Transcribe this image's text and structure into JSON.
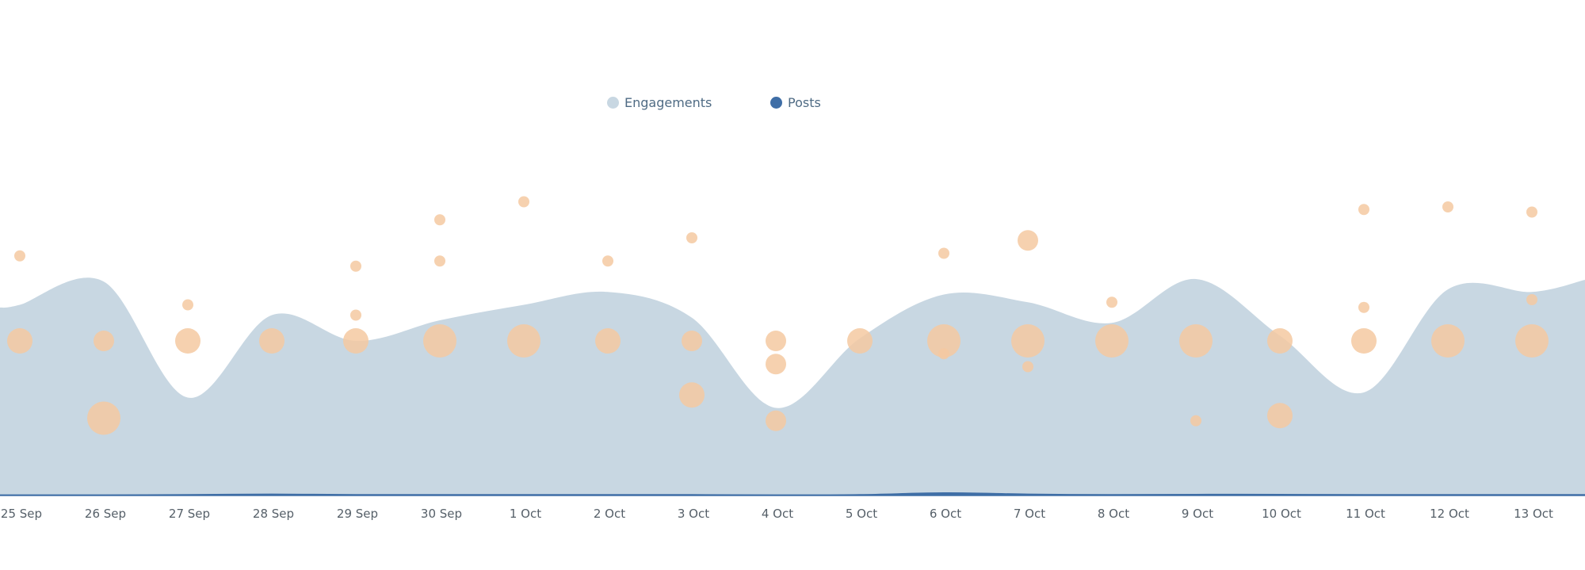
{
  "legend": {
    "engagements_label": "Engagements",
    "posts_label": "Posts"
  },
  "colors": {
    "engagements_fill": "#c8d7e2",
    "posts_line": "#3f6ea6",
    "bubble": "#f4c9a1",
    "axis_text": "#555f68",
    "legend_text": "#4f6b84"
  },
  "chart_data": {
    "type": "area",
    "categories": [
      "25 Sep",
      "26 Sep",
      "27 Sep",
      "28 Sep",
      "29 Sep",
      "30 Sep",
      "1 Oct",
      "2 Oct",
      "3 Oct",
      "4 Oct",
      "5 Oct",
      "6 Oct",
      "7 Oct",
      "8 Oct",
      "9 Oct",
      "10 Oct",
      "11 Oct",
      "12 Oct",
      "13 Oct"
    ],
    "series": [
      {
        "name": "Engagements",
        "values": [
          0.74,
          0.83,
          0.38,
          0.7,
          0.6,
          0.68,
          0.74,
          0.79,
          0.69,
          0.34,
          0.61,
          0.78,
          0.75,
          0.67,
          0.84,
          0.62,
          0.4,
          0.8,
          0.79
        ]
      },
      {
        "name": "Posts",
        "values": [
          0.002,
          0.002,
          0.003,
          0.005,
          0.003,
          0.003,
          0.003,
          0.003,
          0.003,
          0.002,
          0.003,
          0.01,
          0.005,
          0.003,
          0.004,
          0.004,
          0.003,
          0.003,
          0.003
        ]
      }
    ],
    "bubbles": [
      {
        "x": "25 Sep",
        "level": 0.93,
        "size": 1
      },
      {
        "x": "25 Sep",
        "level": 0.6,
        "size": 3
      },
      {
        "x": "26 Sep",
        "level": 0.6,
        "size": 2
      },
      {
        "x": "26 Sep",
        "level": 0.3,
        "size": 4
      },
      {
        "x": "27 Sep",
        "level": 0.74,
        "size": 1
      },
      {
        "x": "27 Sep",
        "level": 0.6,
        "size": 3
      },
      {
        "x": "28 Sep",
        "level": 0.6,
        "size": 3
      },
      {
        "x": "29 Sep",
        "level": 0.89,
        "size": 1
      },
      {
        "x": "29 Sep",
        "level": 0.7,
        "size": 1
      },
      {
        "x": "29 Sep",
        "level": 0.6,
        "size": 3
      },
      {
        "x": "30 Sep",
        "level": 1.07,
        "size": 1
      },
      {
        "x": "30 Sep",
        "level": 0.91,
        "size": 1
      },
      {
        "x": "30 Sep",
        "level": 0.6,
        "size": 4
      },
      {
        "x": "1 Oct",
        "level": 1.14,
        "size": 1
      },
      {
        "x": "1 Oct",
        "level": 0.6,
        "size": 4
      },
      {
        "x": "2 Oct",
        "level": 0.91,
        "size": 1
      },
      {
        "x": "2 Oct",
        "level": 0.6,
        "size": 3
      },
      {
        "x": "3 Oct",
        "level": 1.0,
        "size": 1
      },
      {
        "x": "3 Oct",
        "level": 0.6,
        "size": 2
      },
      {
        "x": "3 Oct",
        "level": 0.39,
        "size": 3
      },
      {
        "x": "4 Oct",
        "level": 0.6,
        "size": 2
      },
      {
        "x": "4 Oct",
        "level": 0.51,
        "size": 2
      },
      {
        "x": "4 Oct",
        "level": 0.29,
        "size": 2
      },
      {
        "x": "5 Oct",
        "level": 0.6,
        "size": 3
      },
      {
        "x": "6 Oct",
        "level": 0.94,
        "size": 1
      },
      {
        "x": "6 Oct",
        "level": 0.6,
        "size": 4
      },
      {
        "x": "6 Oct",
        "level": 0.55,
        "size": 1
      },
      {
        "x": "7 Oct",
        "level": 0.99,
        "size": 2
      },
      {
        "x": "7 Oct",
        "level": 0.6,
        "size": 4
      },
      {
        "x": "7 Oct",
        "level": 0.5,
        "size": 1
      },
      {
        "x": "8 Oct",
        "level": 0.75,
        "size": 1
      },
      {
        "x": "8 Oct",
        "level": 0.6,
        "size": 4
      },
      {
        "x": "9 Oct",
        "level": 0.6,
        "size": 4
      },
      {
        "x": "9 Oct",
        "level": 0.29,
        "size": 1
      },
      {
        "x": "10 Oct",
        "level": 0.6,
        "size": 3
      },
      {
        "x": "10 Oct",
        "level": 0.31,
        "size": 3
      },
      {
        "x": "11 Oct",
        "level": 1.11,
        "size": 1
      },
      {
        "x": "11 Oct",
        "level": 0.73,
        "size": 1
      },
      {
        "x": "11 Oct",
        "level": 0.6,
        "size": 3
      },
      {
        "x": "12 Oct",
        "level": 1.12,
        "size": 1
      },
      {
        "x": "12 Oct",
        "level": 0.6,
        "size": 4
      },
      {
        "x": "13 Oct",
        "level": 1.1,
        "size": 1
      },
      {
        "x": "13 Oct",
        "level": 0.76,
        "size": 1
      },
      {
        "x": "13 Oct",
        "level": 0.6,
        "size": 4
      }
    ],
    "grid": false,
    "legend_position": "top-center"
  }
}
